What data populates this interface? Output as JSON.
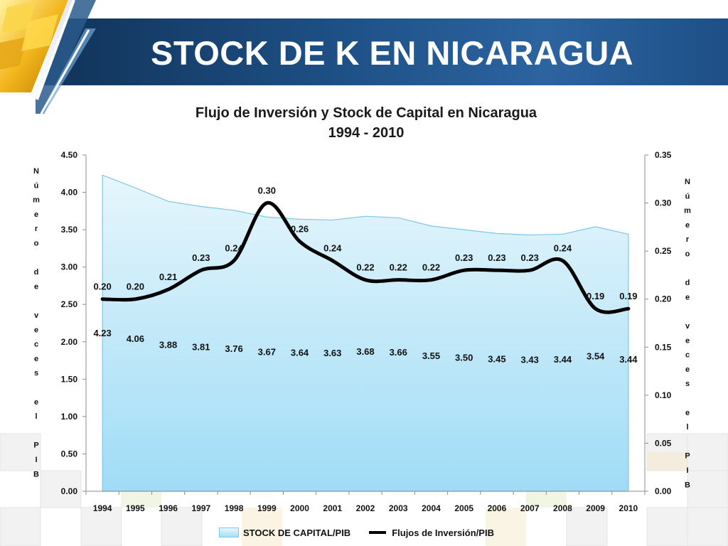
{
  "header": {
    "title": "STOCK DE K EN NICARAGUA"
  },
  "colors": {
    "header_dark": "#0f2f52",
    "header_mid": "#2c64a0",
    "area_fill_top": "#e6f6fc",
    "area_fill_bottom": "#9fdcf6",
    "area_stroke": "#7ec8e6",
    "line": "#000000"
  },
  "chart_data": {
    "type": "area+line",
    "title": "Flujo de Inversión y Stock de Capital en Nicaragua",
    "subtitle": "1994 - 2010",
    "categories": [
      "1994",
      "1995",
      "1996",
      "1997",
      "1998",
      "1999",
      "2000",
      "2001",
      "2002",
      "2003",
      "2004",
      "2005",
      "2006",
      "2007",
      "2008",
      "2009",
      "2010"
    ],
    "series": [
      {
        "name": "STOCK DE CAPITAL/PIB",
        "kind": "area",
        "axis": "left",
        "values": [
          4.23,
          4.06,
          3.88,
          3.81,
          3.76,
          3.67,
          3.64,
          3.63,
          3.68,
          3.66,
          3.55,
          3.5,
          3.45,
          3.43,
          3.44,
          3.54,
          3.44
        ],
        "labels": [
          "4.23",
          "4.06",
          "3.88",
          "3.81",
          "3.76",
          "3.67",
          "3.64",
          "3.63",
          "3.68",
          "3.66",
          "3.55",
          "3.50",
          "3.45",
          "3.43",
          "3.44",
          "3.54",
          "3.44"
        ]
      },
      {
        "name": "Flujos de Inversión/PIB",
        "kind": "line",
        "axis": "right",
        "values": [
          0.2,
          0.2,
          0.21,
          0.23,
          0.24,
          0.3,
          0.26,
          0.24,
          0.22,
          0.22,
          0.22,
          0.23,
          0.23,
          0.23,
          0.24,
          0.19,
          0.19
        ],
        "labels": [
          "0.20",
          "0.20",
          "0.21",
          "0.23",
          "0.24",
          "0.30",
          "0.26",
          "0.24",
          "0.22",
          "0.22",
          "0.22",
          "0.23",
          "0.23",
          "0.23",
          "0.24",
          "0.19",
          "0.19"
        ]
      }
    ],
    "y_left": {
      "ylim": [
        0,
        4.5
      ],
      "ticks": [
        "0.00",
        "0.50",
        "1.00",
        "1.50",
        "2.00",
        "2.50",
        "3.00",
        "3.50",
        "4.00",
        "4.50"
      ],
      "label": "Número de veces el PIB"
    },
    "y_right": {
      "ylim": [
        0,
        0.35
      ],
      "ticks": [
        "0.00",
        "0.05",
        "0.10",
        "0.15",
        "0.20",
        "0.25",
        "0.30",
        "0.35"
      ],
      "label": "Número de veces el PIB"
    },
    "grid": false,
    "legend_position": "bottom"
  }
}
